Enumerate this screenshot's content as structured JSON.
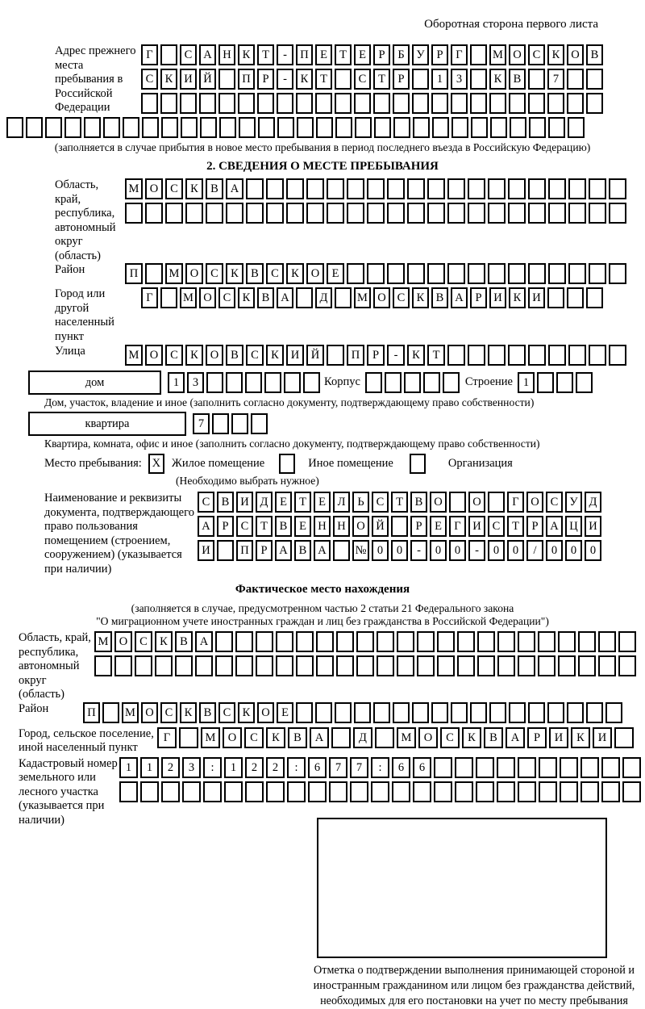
{
  "page": {
    "header_note": "Оборотная сторона первого листа"
  },
  "prev_address": {
    "label": "Адрес прежнего места пребывания в Российской Федерации",
    "rows": [
      {
        "t": "Г САНКТ-ПЕТЕРБУРГ МОСКОВ",
        "len": 24
      },
      {
        "t": "СКИЙ ПР-КТ СТР 13 КВ 7",
        "len": 24
      },
      {
        "t": "",
        "len": 24
      }
    ],
    "full_row": {
      "t": "",
      "len": 30
    },
    "caption": "(заполняется в случае прибытия в новое место пребывания в период последнего въезда в Российскую Федерацию)"
  },
  "section2": {
    "title": "2. СВЕДЕНИЯ О МЕСТЕ ПРЕБЫВАНИЯ",
    "oblast": {
      "label": "Область, край, республика, автономный округ (область)",
      "rows": [
        {
          "t": "МОСКВА",
          "len": 25
        },
        {
          "t": "",
          "len": 25
        }
      ]
    },
    "raion": {
      "label": "Район",
      "row": {
        "t": "П МОСКВСКОЕ",
        "len": 25
      }
    },
    "gorod": {
      "label": "Город или другой населенный пункт",
      "row": {
        "t": "Г МОСКВА Д МОСКВАРИКИ",
        "len": 24
      }
    },
    "ulitsa": {
      "label": "Улица",
      "row": {
        "t": "МОСКОВСКИЙ ПР-КТ",
        "len": 25
      }
    },
    "dom_row": {
      "dom_label": "дом",
      "dom_cells": {
        "t": "13",
        "len": 8
      },
      "korpus_label": "Корпус",
      "korpus_cells": {
        "t": "",
        "len": 5
      },
      "stroenie_label": "Строение",
      "stroenie_cells": {
        "t": "1",
        "len": 4
      }
    },
    "dom_caption": "Дом, участок, владение и иное (заполнить согласно документу, подтверждающему право собственности)",
    "kvartira_row": {
      "label": "квартира",
      "cells": {
        "t": "7",
        "len": 4
      }
    },
    "kvartira_caption": "Квартира, комната, офис и иное (заполнить согласно документу, подтверждающему право собственности)",
    "place_type": {
      "label": "Место пребывания:",
      "options": [
        {
          "label": "Жилое помещение",
          "checked": true
        },
        {
          "label": "Иное помещение",
          "checked": false
        },
        {
          "label": "Организация",
          "checked": false
        }
      ],
      "hint": "(Необходимо выбрать нужное)"
    },
    "doc": {
      "label": "Наименование и реквизиты документа, подтверждающего право пользования помещением (строением, сооружением) (указывается при наличии)",
      "rows": [
        {
          "t": "СВИДЕТЕЛЬСТВО О ГОСУД",
          "len": 21
        },
        {
          "t": "АРСТВЕННОЙ РЕГИСТРАЦИ",
          "len": 21
        },
        {
          "t": "И ПРАВА №00-00-00/000",
          "len": 21
        }
      ]
    }
  },
  "actual_location": {
    "title": "Фактическое место нахождения",
    "caption_line1": "(заполняется в случае, предусмотренном частью 2 статьи 21 Федерального закона",
    "caption_line2": "\"О миграционном учете иностранных граждан и лиц без гражданства в Российской Федерации\")",
    "oblast": {
      "label": "Область, край, республика, автономный округ (область)",
      "rows": [
        {
          "t": "МОСКВА",
          "len": 27
        },
        {
          "t": "",
          "len": 27
        }
      ]
    },
    "raion": {
      "label": "Район",
      "row": {
        "t": "П МОСКВСКОЕ",
        "len": 28
      }
    },
    "gorod": {
      "label": "Город, сельское поселение, иной населенный пункт",
      "row": {
        "t": "Г МОСКВА Д МОСКВАРИКИ",
        "len": 22
      }
    },
    "kadastr": {
      "label": "Кадастровый номер земельного или лесного участка (указывается при наличии)",
      "rows": [
        {
          "t": "1123:122:677:66",
          "len": 25
        },
        {
          "t": "",
          "len": 25
        }
      ]
    },
    "stamp_caption": "Отметка о подтверждении выполнения принимающей стороной и иностранным гражданином или лицом без гражданства действий, необходимых для его постановки на учет по месту пребывания"
  }
}
